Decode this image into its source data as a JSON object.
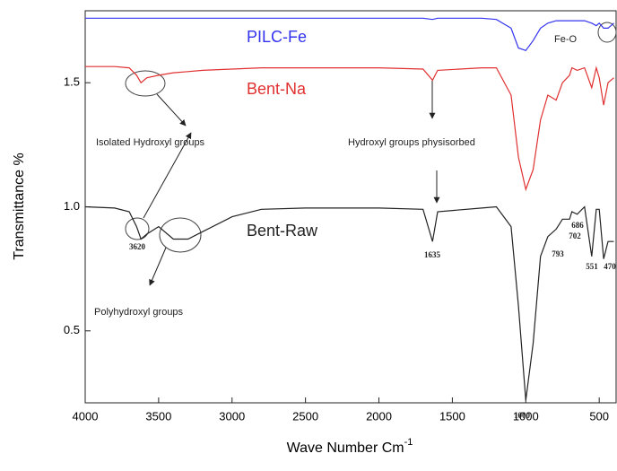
{
  "chart_data": {
    "type": "line",
    "xlabel": "Wave Number Cm",
    "xlabel_sup": "-1",
    "ylabel": "Transmittance %",
    "x": [
      4000,
      3800,
      3700,
      3650,
      3620,
      3580,
      3500,
      3400,
      3300,
      3200,
      3000,
      2800,
      2500,
      2000,
      1700,
      1635,
      1600,
      1300,
      1200,
      1100,
      1050,
      1000,
      950,
      900,
      850,
      793,
      750,
      702,
      686,
      650,
      600,
      551,
      520,
      500,
      470,
      440,
      400
    ],
    "series": [
      {
        "name": "PILC-Fe",
        "color": "#3333ee",
        "values": [
          1.76,
          1.76,
          1.76,
          1.76,
          1.76,
          1.76,
          1.76,
          1.76,
          1.76,
          1.76,
          1.76,
          1.76,
          1.76,
          1.76,
          1.76,
          1.755,
          1.76,
          1.76,
          1.755,
          1.72,
          1.64,
          1.63,
          1.67,
          1.72,
          1.74,
          1.75,
          1.75,
          1.75,
          1.75,
          1.75,
          1.75,
          1.74,
          1.73,
          1.74,
          1.72,
          1.72,
          1.74
        ]
      },
      {
        "name": "Bent-Na",
        "color": "#e03030",
        "values": [
          1.565,
          1.565,
          1.56,
          1.53,
          1.5,
          1.52,
          1.53,
          1.54,
          1.545,
          1.55,
          1.555,
          1.56,
          1.56,
          1.56,
          1.555,
          1.51,
          1.55,
          1.56,
          1.56,
          1.45,
          1.2,
          1.07,
          1.15,
          1.35,
          1.45,
          1.43,
          1.5,
          1.53,
          1.56,
          1.55,
          1.56,
          1.48,
          1.56,
          1.52,
          1.41,
          1.5,
          1.52
        ]
      },
      {
        "name": "Bent-Raw",
        "color": "#222222",
        "values": [
          1.0,
          0.995,
          0.98,
          0.92,
          0.87,
          0.89,
          0.92,
          0.87,
          0.87,
          0.9,
          0.96,
          0.99,
          0.995,
          0.995,
          0.99,
          0.86,
          0.98,
          0.995,
          1.0,
          0.92,
          0.6,
          0.22,
          0.45,
          0.8,
          0.88,
          0.91,
          0.95,
          0.95,
          0.98,
          0.97,
          1.0,
          0.8,
          0.99,
          0.99,
          0.79,
          0.86,
          0.86
        ]
      }
    ],
    "xlim": [
      4000,
      385
    ],
    "xticks": [
      4000,
      3500,
      3000,
      2500,
      2000,
      1500,
      1000,
      500
    ],
    "ylim": [
      0.21,
      1.79
    ],
    "yticks": [
      0.5,
      {
        "value": 1,
        "label": "1.0"
      },
      1.5
    ],
    "annotations": [
      "Fe-O",
      "Isolated Hydroxyl groups",
      "Hydroxyl groups physisorbed",
      "Polyhydroxyl groups",
      "3620",
      "1635",
      "1000",
      "793",
      "702",
      "686",
      "551",
      "470"
    ]
  }
}
